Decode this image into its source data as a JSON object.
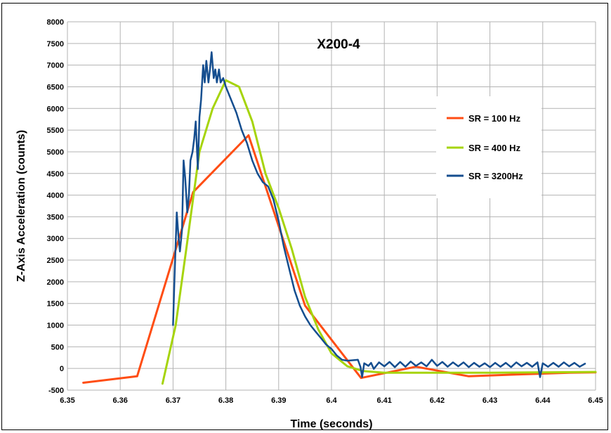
{
  "chart_data": {
    "type": "line",
    "title": "X200-4",
    "xlabel": "Time (seconds)",
    "ylabel": "Z-Axis Acceleration (counts)",
    "xlim": [
      6.35,
      6.45
    ],
    "ylim": [
      -500,
      8000
    ],
    "x_ticks": [
      "6.35",
      "6.36",
      "6.37",
      "6.38",
      "6.39",
      "6.4",
      "6.41",
      "6.42",
      "6.43",
      "6.44",
      "6.45"
    ],
    "y_ticks": [
      "-500",
      "0",
      "500",
      "1000",
      "1500",
      "2000",
      "2500",
      "3000",
      "3500",
      "4000",
      "4500",
      "5000",
      "5500",
      "6000",
      "6500",
      "7000",
      "7500",
      "8000"
    ],
    "grid": true,
    "legend_position": "right",
    "series": [
      {
        "name": "SR = 100 Hz",
        "color": "#ff4d14",
        "points": [
          [
            6.353,
            -330
          ],
          [
            6.3632,
            -180
          ],
          [
            6.3738,
            4070
          ],
          [
            6.3843,
            5380
          ],
          [
            6.395,
            1450
          ],
          [
            6.4056,
            -220
          ],
          [
            6.416,
            40
          ],
          [
            6.426,
            -180
          ],
          [
            6.435,
            -140
          ],
          [
            6.445,
            -100
          ],
          [
            6.45,
            -90
          ]
        ]
      },
      {
        "name": "SR = 400 Hz",
        "color": "#a6d40c",
        "points": [
          [
            6.368,
            -350
          ],
          [
            6.3705,
            1000
          ],
          [
            6.3725,
            2750
          ],
          [
            6.375,
            5000
          ],
          [
            6.3775,
            6000
          ],
          [
            6.38,
            6650
          ],
          [
            6.3825,
            6500
          ],
          [
            6.385,
            5700
          ],
          [
            6.3875,
            4500
          ],
          [
            6.39,
            3700
          ],
          [
            6.3925,
            2750
          ],
          [
            6.395,
            1650
          ],
          [
            6.3975,
            900
          ],
          [
            6.4,
            350
          ],
          [
            6.403,
            50
          ],
          [
            6.406,
            -60
          ],
          [
            6.41,
            -100
          ],
          [
            6.42,
            -100
          ],
          [
            6.43,
            -100
          ],
          [
            6.44,
            -90
          ],
          [
            6.45,
            -80
          ]
        ]
      },
      {
        "name": "SR = 3200Hz",
        "color": "#154e8f",
        "points": [
          [
            6.37,
            1000
          ],
          [
            6.3703,
            2200
          ],
          [
            6.3707,
            3600
          ],
          [
            6.371,
            3100
          ],
          [
            6.3713,
            2700
          ],
          [
            6.3717,
            3200
          ],
          [
            6.372,
            4800
          ],
          [
            6.3723,
            4400
          ],
          [
            6.3727,
            3600
          ],
          [
            6.373,
            4000
          ],
          [
            6.3733,
            4800
          ],
          [
            6.3737,
            5000
          ],
          [
            6.374,
            5300
          ],
          [
            6.3743,
            5700
          ],
          [
            6.3747,
            4600
          ],
          [
            6.375,
            5800
          ],
          [
            6.3753,
            6200
          ],
          [
            6.3757,
            7000
          ],
          [
            6.376,
            6600
          ],
          [
            6.3763,
            7100
          ],
          [
            6.3767,
            6600
          ],
          [
            6.377,
            6900
          ],
          [
            6.3773,
            7300
          ],
          [
            6.3777,
            6700
          ],
          [
            6.378,
            6900
          ],
          [
            6.3783,
            6600
          ],
          [
            6.3787,
            6900
          ],
          [
            6.379,
            6600
          ],
          [
            6.3795,
            6700
          ],
          [
            6.38,
            6500
          ],
          [
            6.381,
            6200
          ],
          [
            6.382,
            5900
          ],
          [
            6.383,
            5500
          ],
          [
            6.384,
            5200
          ],
          [
            6.385,
            4800
          ],
          [
            6.386,
            4500
          ],
          [
            6.387,
            4300
          ],
          [
            6.388,
            4200
          ],
          [
            6.389,
            3900
          ],
          [
            6.39,
            3400
          ],
          [
            6.391,
            2800
          ],
          [
            6.392,
            2300
          ],
          [
            6.393,
            1800
          ],
          [
            6.394,
            1450
          ],
          [
            6.395,
            1200
          ],
          [
            6.396,
            1000
          ],
          [
            6.397,
            850
          ],
          [
            6.398,
            700
          ],
          [
            6.399,
            550
          ],
          [
            6.4,
            450
          ],
          [
            6.401,
            300
          ],
          [
            6.402,
            200
          ],
          [
            6.403,
            180
          ],
          [
            6.404,
            190
          ],
          [
            6.405,
            200
          ],
          [
            6.4055,
            30
          ],
          [
            6.4058,
            -200
          ],
          [
            6.4062,
            120
          ],
          [
            6.407,
            60
          ],
          [
            6.4075,
            130
          ],
          [
            6.408,
            -10
          ],
          [
            6.409,
            140
          ],
          [
            6.41,
            50
          ],
          [
            6.411,
            150
          ],
          [
            6.412,
            30
          ],
          [
            6.413,
            150
          ],
          [
            6.414,
            40
          ],
          [
            6.415,
            160
          ],
          [
            6.416,
            60
          ],
          [
            6.417,
            140
          ],
          [
            6.418,
            50
          ],
          [
            6.419,
            200
          ],
          [
            6.42,
            60
          ],
          [
            6.421,
            150
          ],
          [
            6.422,
            40
          ],
          [
            6.423,
            140
          ],
          [
            6.424,
            50
          ],
          [
            6.425,
            140
          ],
          [
            6.426,
            30
          ],
          [
            6.427,
            130
          ],
          [
            6.428,
            40
          ],
          [
            6.429,
            120
          ],
          [
            6.43,
            30
          ],
          [
            6.431,
            130
          ],
          [
            6.432,
            40
          ],
          [
            6.433,
            130
          ],
          [
            6.434,
            30
          ],
          [
            6.435,
            140
          ],
          [
            6.436,
            50
          ],
          [
            6.437,
            130
          ],
          [
            6.438,
            40
          ],
          [
            6.439,
            140
          ],
          [
            6.4395,
            -200
          ],
          [
            6.44,
            120
          ],
          [
            6.441,
            40
          ],
          [
            6.442,
            130
          ],
          [
            6.443,
            40
          ],
          [
            6.444,
            140
          ],
          [
            6.445,
            50
          ],
          [
            6.446,
            130
          ],
          [
            6.447,
            40
          ],
          [
            6.448,
            110
          ]
        ]
      }
    ]
  }
}
